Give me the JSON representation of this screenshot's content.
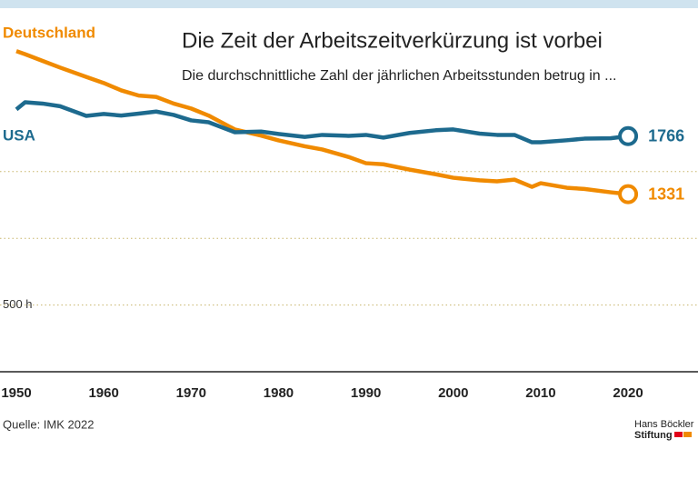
{
  "chart_data": {
    "type": "line",
    "title": "Die Zeit der Arbeitszeitverkürzung ist vorbei",
    "subtitle": "Die durchschnittliche Zahl der jährlichen Arbeitsstunden betrug in ...",
    "source": "Quelle: IMK 2022",
    "logo": [
      "Hans Böckler",
      "Stiftung"
    ],
    "x": [
      1950,
      1951,
      1953,
      1955,
      1958,
      1960,
      1962,
      1964,
      1966,
      1968,
      1970,
      1972,
      1975,
      1978,
      1980,
      1983,
      1985,
      1988,
      1990,
      1992,
      1995,
      1998,
      2000,
      2003,
      2005,
      2007,
      2009,
      2010,
      2013,
      2015,
      2018,
      2020
    ],
    "series": [
      {
        "name": "Deutschland",
        "color": "#f08a00",
        "values": [
          2403,
          2380,
          2330,
          2280,
          2210,
          2164,
          2109,
          2070,
          2060,
          2010,
          1973,
          1920,
          1816,
          1770,
          1734,
          1690,
          1666,
          1610,
          1563,
          1555,
          1515,
          1480,
          1454,
          1435,
          1427,
          1440,
          1386,
          1413,
          1379,
          1370,
          1345,
          1331
        ]
      },
      {
        "name": "USA",
        "color": "#1d6a8e",
        "values": [
          1966,
          2020,
          2010,
          1990,
          1918,
          1932,
          1920,
          1935,
          1950,
          1925,
          1884,
          1870,
          1795,
          1800,
          1782,
          1760,
          1775,
          1768,
          1775,
          1755,
          1790,
          1810,
          1816,
          1785,
          1775,
          1775,
          1720,
          1720,
          1735,
          1747,
          1750,
          1766
        ]
      }
    ],
    "xlim": [
      1950,
      2028
    ],
    "xticks": [
      1950,
      1960,
      1970,
      1980,
      1990,
      2000,
      2010,
      2020
    ],
    "ylim": [
      0,
      2650
    ],
    "yticks": [
      {
        "value": 500,
        "label": "500 h"
      },
      {
        "value": 1000,
        "label": null
      },
      {
        "value": 1500,
        "label": null
      }
    ],
    "grid": true
  }
}
